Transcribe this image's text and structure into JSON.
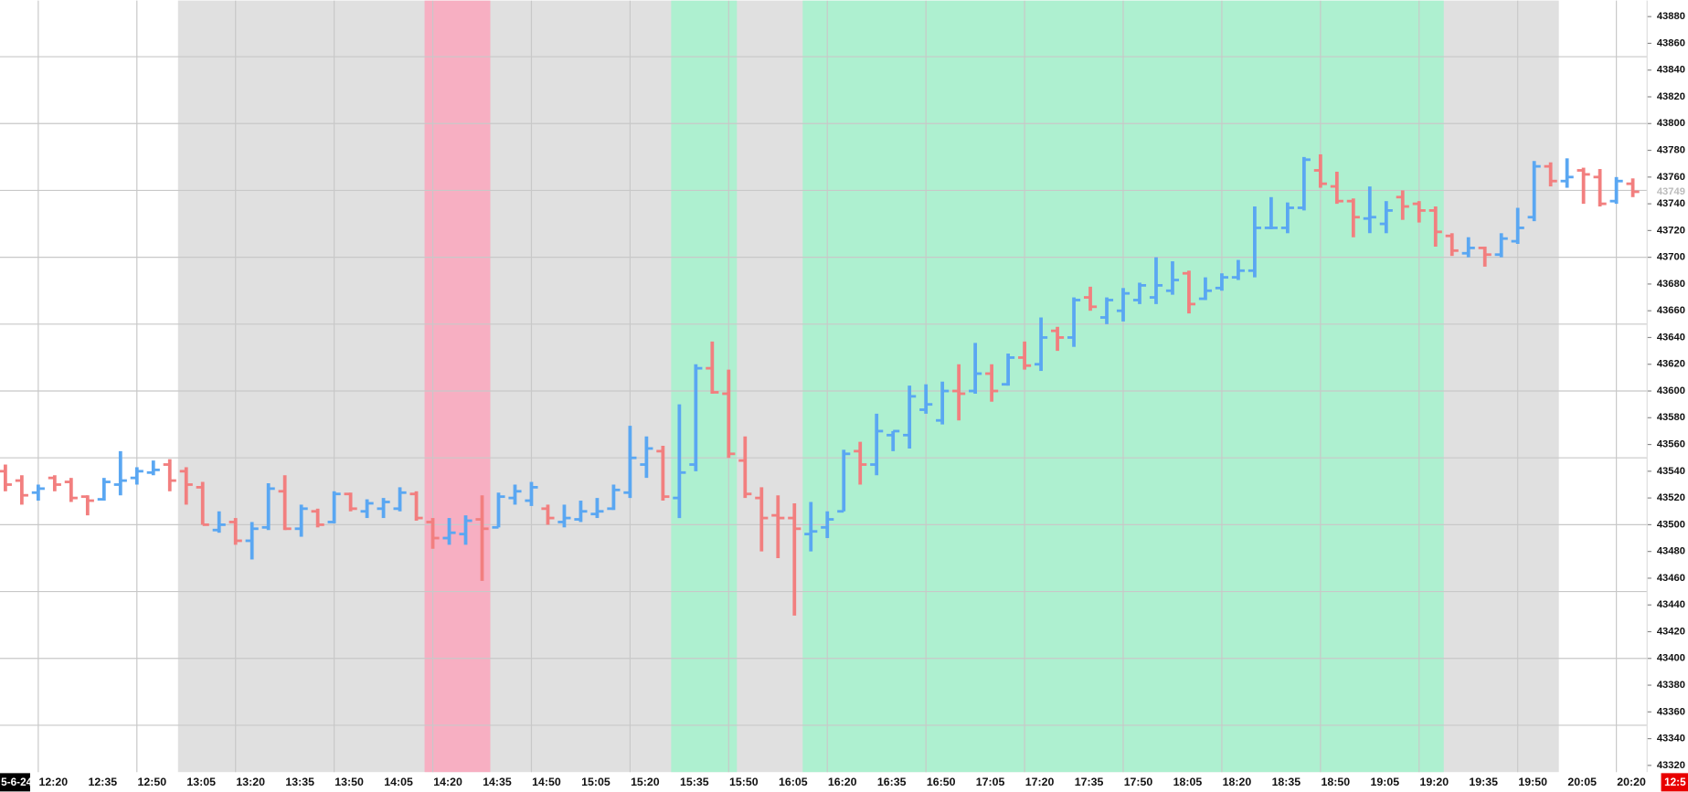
{
  "chart_data": {
    "type": "ohlc",
    "categories": [
      null,
      null,
      "12:20",
      null,
      null,
      "12:35",
      null,
      null,
      "12:50",
      null,
      null,
      "13:05",
      null,
      null,
      "13:20",
      null,
      null,
      "13:35",
      null,
      null,
      "13:50",
      null,
      null,
      "14:05",
      null,
      null,
      "14:20",
      null,
      null,
      "14:35",
      null,
      null,
      "14:50",
      null,
      null,
      "15:05",
      null,
      null,
      "15:20",
      null,
      null,
      "15:35",
      null,
      null,
      "15:50",
      null,
      null,
      "16:05",
      null,
      null,
      "16:20",
      null,
      null,
      "16:35",
      null,
      null,
      "16:50",
      null,
      null,
      "17:05",
      null,
      null,
      "17:20",
      null,
      null,
      "17:35",
      null,
      null,
      "17:50",
      null,
      null,
      "18:05",
      null,
      null,
      "18:20",
      null,
      null,
      "18:35",
      null,
      null,
      "18:50",
      null,
      null,
      "19:05",
      null,
      null,
      "19:20",
      null,
      null,
      "19:35",
      null,
      null,
      "19:50",
      null,
      null,
      "20:05",
      null,
      null,
      "20:20",
      null
    ],
    "open": [
      43540,
      43533,
      43524,
      43535,
      43532,
      43521,
      43519,
      43530,
      43535,
      43539,
      43545,
      43540,
      43528,
      43496,
      43502,
      43488,
      43498,
      43525,
      43497,
      43510,
      43502,
      43523,
      43510,
      43512,
      43512,
      43523,
      43502,
      43490,
      43493,
      43504,
      43498,
      43520,
      43518,
      43512,
      43502,
      43504,
      43508,
      43512,
      43524,
      43545,
      43555,
      43520,
      43545,
      43617,
      43598,
      43548,
      43520,
      43507,
      43505,
      43493,
      43498,
      43510,
      43555,
      43545,
      43567,
      43567,
      43586,
      43578,
      43600,
      43600,
      43613,
      43605,
      43625,
      43620,
      43645,
      43640,
      43670,
      43655,
      43660,
      43668,
      43670,
      43675,
      43688,
      43669,
      43677,
      43685,
      43690,
      43722,
      43722,
      43737,
      43765,
      43753,
      43742,
      43729,
      43725,
      43745,
      43740,
      43735,
      43716,
      43703,
      43707,
      43702,
      43712,
      43730,
      43768,
      43757,
      43765,
      43760,
      43742,
      43755
    ],
    "high": [
      43545,
      43537,
      43530,
      43537,
      43535,
      43522,
      43535,
      43555,
      43543,
      43548,
      43549,
      43543,
      43532,
      43510,
      43505,
      43502,
      43531,
      43537,
      43515,
      43512,
      43525,
      43524,
      43519,
      43520,
      43528,
      43525,
      43505,
      43505,
      43507,
      43522,
      43524,
      43530,
      43532,
      43515,
      43515,
      43518,
      43520,
      43530,
      43574,
      43566,
      43559,
      43590,
      43620,
      43637,
      43616,
      43566,
      43528,
      43522,
      43516,
      43517,
      43510,
      43556,
      43562,
      43583,
      43570,
      43604,
      43605,
      43607,
      43620,
      43636,
      43620,
      43628,
      43637,
      43655,
      43648,
      43670,
      43678,
      43670,
      43677,
      43681,
      43700,
      43697,
      43690,
      43685,
      43688,
      43698,
      43738,
      43745,
      43741,
      43775,
      43777,
      43764,
      43744,
      43753,
      43742,
      43750,
      43742,
      43738,
      43718,
      43715,
      43708,
      43718,
      43737,
      43772,
      43771,
      43774,
      43767,
      43766,
      43760,
      43759
    ],
    "low": [
      43525,
      43515,
      43518,
      43525,
      43517,
      43507,
      43518,
      43522,
      43530,
      43537,
      43525,
      43515,
      43500,
      43494,
      43485,
      43474,
      43496,
      43496,
      43491,
      43498,
      43501,
      43510,
      43505,
      43505,
      43510,
      43503,
      43482,
      43485,
      43485,
      43458,
      43498,
      43515,
      43514,
      43500,
      43498,
      43502,
      43505,
      43511,
      43520,
      43535,
      43518,
      43505,
      43540,
      43598,
      43550,
      43520,
      43480,
      43475,
      43432,
      43480,
      43490,
      43510,
      43530,
      43537,
      43555,
      43557,
      43583,
      43575,
      43578,
      43598,
      43592,
      43604,
      43616,
      43615,
      43630,
      43633,
      43660,
      43650,
      43652,
      43665,
      43665,
      43672,
      43658,
      43668,
      43675,
      43683,
      43685,
      43721,
      43718,
      43735,
      43752,
      43740,
      43715,
      43718,
      43718,
      43728,
      43726,
      43708,
      43701,
      43700,
      43693,
      43700,
      43710,
      43727,
      43753,
      43752,
      43740,
      43738,
      43740,
      43745
    ],
    "close": [
      43530,
      43522,
      43527,
      43530,
      43520,
      43518,
      43532,
      43533,
      43540,
      43541,
      43533,
      43530,
      43500,
      43500,
      43488,
      43497,
      43527,
      43497,
      43512,
      43500,
      43523,
      43512,
      43516,
      43517,
      43524,
      43505,
      43490,
      43494,
      43503,
      43497,
      43521,
      43525,
      43528,
      43505,
      43505,
      43510,
      43510,
      43526,
      43550,
      43557,
      43521,
      43539,
      43617,
      43599,
      43553,
      43523,
      43505,
      43505,
      43497,
      43495,
      43504,
      43553,
      43545,
      43570,
      43570,
      43596,
      43590,
      43600,
      43598,
      43613,
      43600,
      43625,
      43619,
      43640,
      43640,
      43668,
      43663,
      43668,
      43673,
      43679,
      43679,
      43683,
      43665,
      43675,
      43685,
      43690,
      43722,
      43722,
      43737,
      43773,
      43755,
      43742,
      43730,
      43730,
      43735,
      43738,
      43735,
      43719,
      43705,
      43707,
      43702,
      43714,
      43722,
      43768,
      43757,
      43760,
      43762,
      43740,
      43757,
      43749
    ],
    "up_color": "#5aa7f2",
    "down_color": "#f27f7f",
    "ylim": [
      43315,
      43892
    ],
    "yticks": [
      43320,
      43340,
      43360,
      43380,
      43400,
      43420,
      43440,
      43460,
      43480,
      43500,
      43520,
      43540,
      43560,
      43580,
      43600,
      43620,
      43640,
      43660,
      43680,
      43700,
      43720,
      43740,
      43760,
      43780,
      43800,
      43820,
      43840,
      43860,
      43880
    ],
    "ygrid": [
      43350,
      43400,
      43450,
      43500,
      43550,
      43600,
      43650,
      43700,
      43750,
      43800,
      43850
    ],
    "bands": [
      {
        "from": 11,
        "to": 94,
        "color": "#e0e0e0"
      },
      {
        "from": 26,
        "to": 29,
        "color": "#f7afc2"
      },
      {
        "from": 41,
        "to": 44,
        "color": "#aef0d0"
      },
      {
        "from": 49,
        "to": 87,
        "color": "#aef0d0"
      }
    ],
    "date_label": "5-6-24",
    "countdown_label": "12:5"
  }
}
